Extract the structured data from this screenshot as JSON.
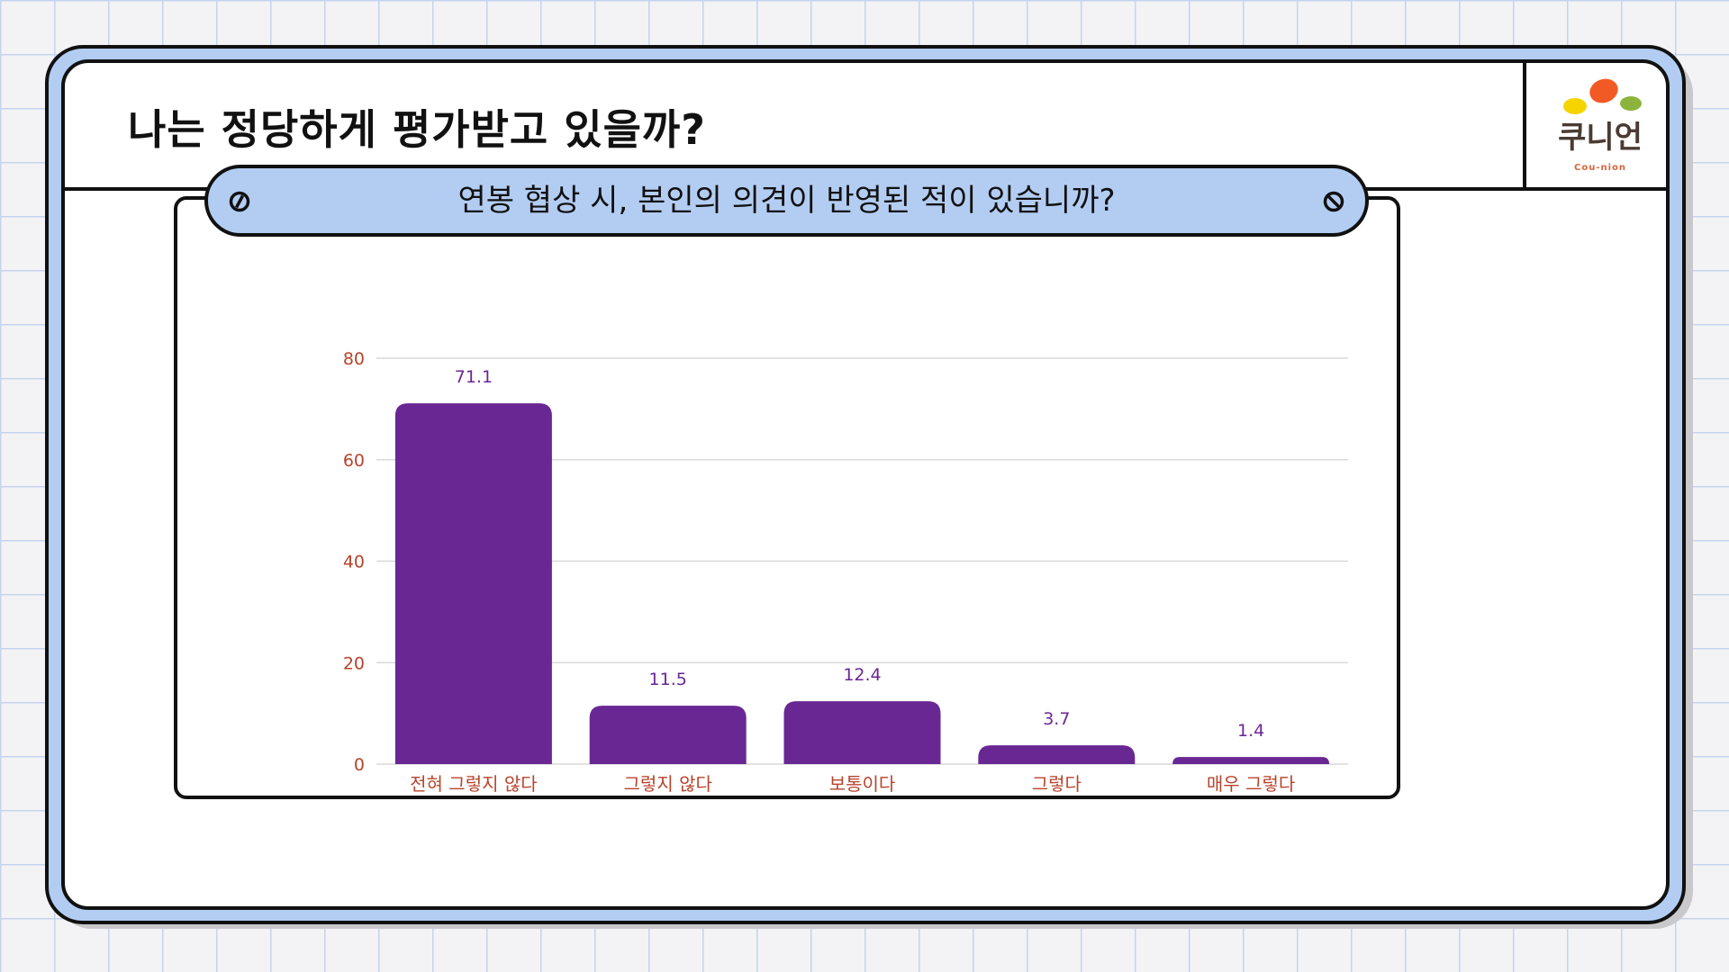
{
  "slide": {
    "title": "나는 정당하게 평가받고 있을까?",
    "question": "연봉 협상 시, 본인의 의견이 반영된 적이 있습니까?"
  },
  "logo": {
    "text": "쿠니언",
    "subtext": "Cou-nion",
    "colors": [
      "#f15a24",
      "#f5d400",
      "#8cb43c"
    ]
  },
  "colors": {
    "bar": "#692794",
    "axis_text": "#b8432c",
    "value_text": "#6a2796",
    "frame_blue": "#b3cdf2",
    "grid": "#d9d9d9"
  },
  "chart_data": {
    "type": "bar",
    "categories": [
      "전혀 그렇지 않다",
      "그렇지 않다",
      "보통이다",
      "그렇다",
      "매우 그렇다"
    ],
    "values": [
      71.1,
      11.5,
      12.4,
      3.7,
      1.4
    ],
    "value_labels": [
      "71.1",
      "11.5",
      "12.4",
      "3.7",
      "1.4"
    ],
    "yticks": [
      "0",
      "20",
      "40",
      "60",
      "80"
    ],
    "ylim": [
      0,
      80
    ],
    "grid": true,
    "legend": "none"
  }
}
